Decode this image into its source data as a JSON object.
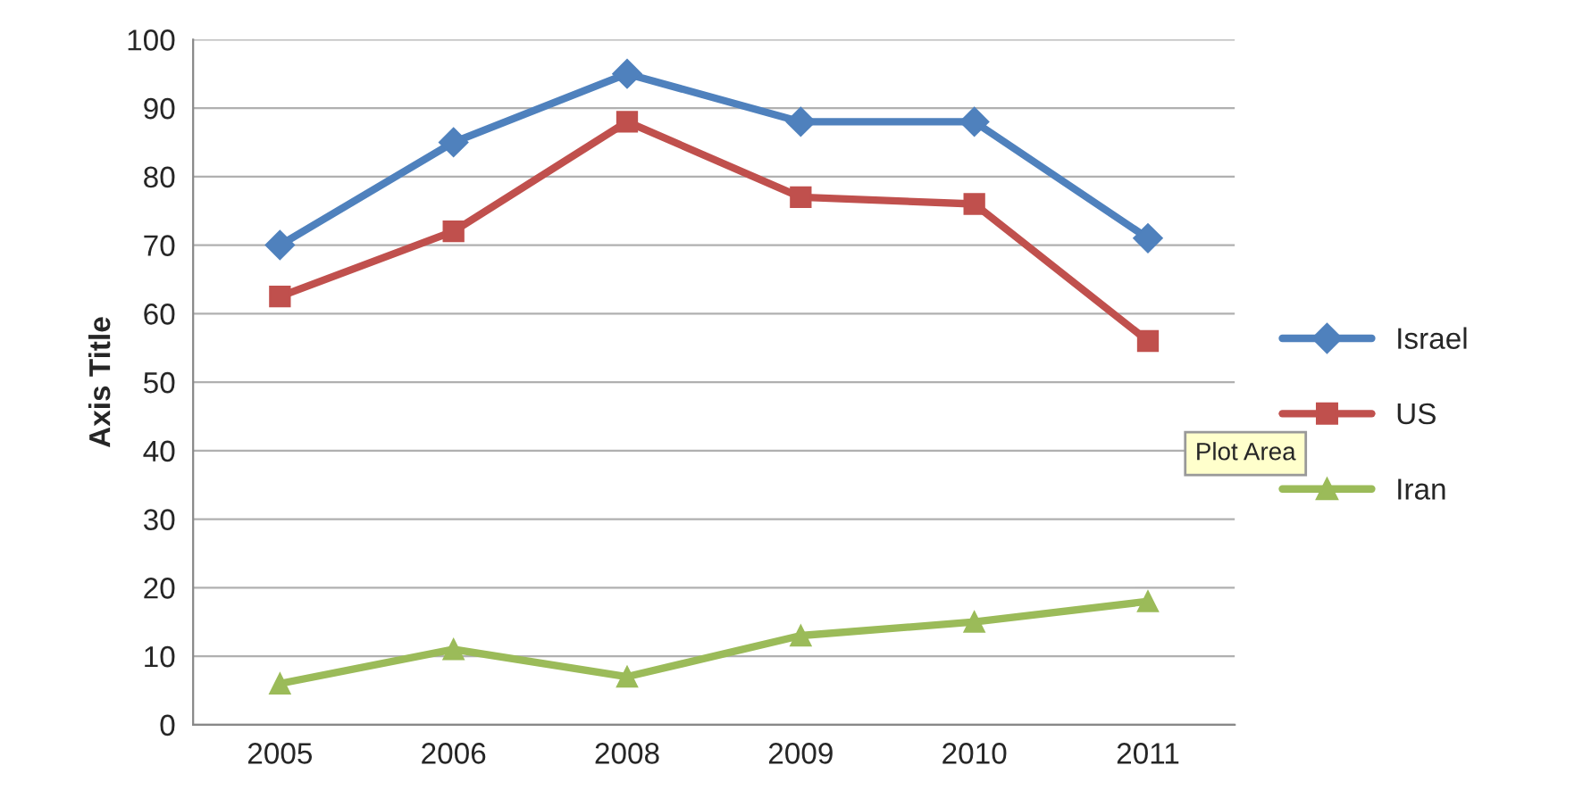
{
  "chart_data": {
    "type": "line",
    "ylabel": "Axis Title",
    "categories": [
      "2005",
      "2006",
      "2008",
      "2009",
      "2010",
      "2011"
    ],
    "series": [
      {
        "name": "Israel",
        "color": "#4f81bd",
        "marker": "diamond",
        "values": [
          70,
          85,
          95,
          88,
          88,
          71
        ]
      },
      {
        "name": "US",
        "color": "#c0504d",
        "marker": "square",
        "values": [
          62.5,
          72,
          88,
          77,
          76,
          56
        ]
      },
      {
        "name": "Iran",
        "color": "#9bbb59",
        "marker": "triangle",
        "values": [
          6,
          11,
          7,
          13,
          15,
          18
        ]
      }
    ],
    "ylim": [
      0,
      100
    ],
    "yticks": [
      0,
      10,
      20,
      30,
      40,
      50,
      60,
      70,
      80,
      90,
      100
    ],
    "grid": "y",
    "legend": "right",
    "line_style": "solid",
    "annotations": [
      "Plot Area"
    ]
  }
}
